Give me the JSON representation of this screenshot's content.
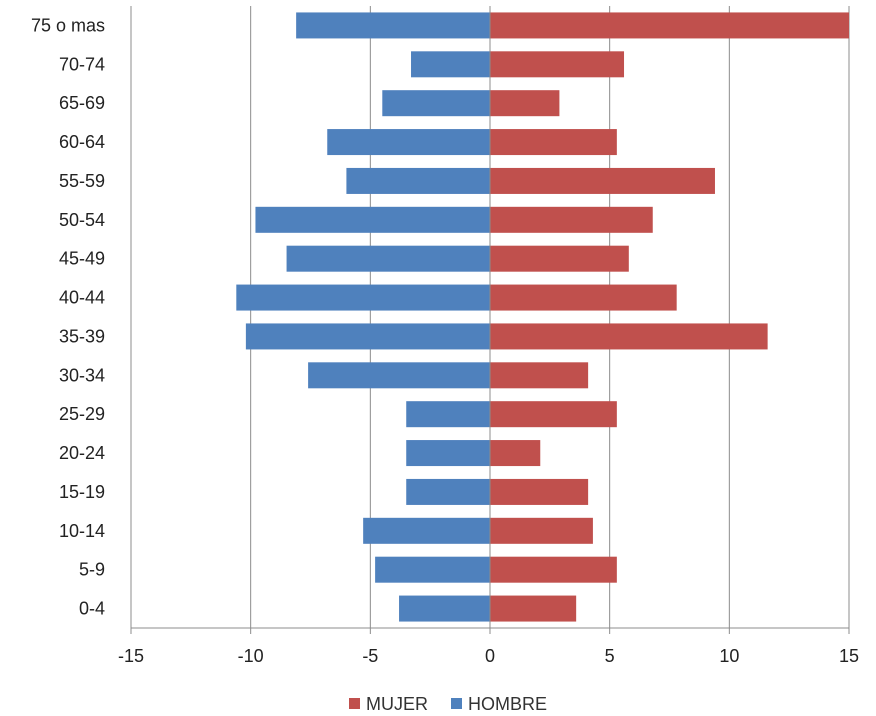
{
  "chart_data": {
    "type": "bar",
    "orientation": "horizontal",
    "diverging": true,
    "categories": [
      "0-4",
      "5-9",
      "10-14",
      "15-19",
      "20-24",
      "25-29",
      "30-34",
      "35-39",
      "40-44",
      "45-49",
      "50-54",
      "55-59",
      "60-64",
      "65-69",
      "70-74",
      "75 o mas"
    ],
    "series": [
      {
        "name": "MUJER",
        "color": "#c0504d",
        "values": [
          3.6,
          5.3,
          4.3,
          4.1,
          2.1,
          5.3,
          4.1,
          11.6,
          7.8,
          5.8,
          6.8,
          9.4,
          5.3,
          2.9,
          5.6,
          15
        ]
      },
      {
        "name": "HOMBRE",
        "color": "#4f81bd",
        "values": [
          -3.8,
          -4.8,
          -5.3,
          -3.5,
          -3.5,
          -3.5,
          -7.6,
          -10.2,
          -10.6,
          -8.5,
          -9.8,
          -6.0,
          -6.8,
          -4.5,
          -3.3,
          -8.1
        ]
      }
    ],
    "xlim": [
      -15,
      15
    ],
    "xticks": [
      "-15",
      "-10",
      "-5",
      "0",
      "5",
      "10",
      "15"
    ],
    "gridlines": "vertical",
    "legend_position": "bottom",
    "title": "",
    "xlabel": "",
    "ylabel": ""
  }
}
